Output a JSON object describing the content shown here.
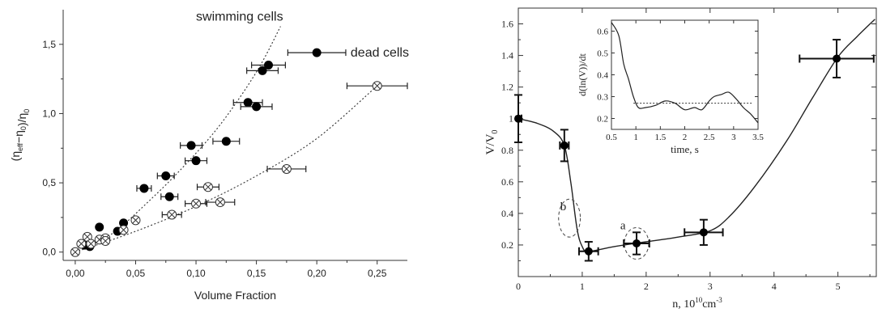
{
  "chart_data": [
    {
      "type": "scatter",
      "xlabel": "Volume Fraction",
      "ylabel": "(η_eff−η_0)/η_0",
      "ylabel_parts": {
        "main": "(η",
        "sub1": "eff",
        "mid": "−η",
        "sub2": "0",
        "close": ")/η",
        "sub3": "0"
      },
      "xlim": [
        -0.01,
        0.275
      ],
      "ylim": [
        -0.06,
        1.75
      ],
      "xticks": [
        0.0,
        0.05,
        0.1,
        0.15,
        0.2,
        0.25
      ],
      "xtick_labels": [
        "0,00",
        "0,05",
        "0,10",
        "0,15",
        "0,20",
        "0,25"
      ],
      "yticks": [
        0.0,
        0.5,
        1.0,
        1.5
      ],
      "ytick_labels": [
        "0,0",
        "0,5",
        "1,0",
        "1,5"
      ],
      "annotations": [
        {
          "text": "swimming cells",
          "x": 0.1,
          "y": 1.67
        },
        {
          "text": "dead cells",
          "x": 0.228,
          "y": 1.41
        }
      ],
      "series": [
        {
          "marker": "filled-circle",
          "points": [
            {
              "x": 0.008,
              "y": 0.05
            },
            {
              "x": 0.012,
              "y": 0.04
            },
            {
              "x": 0.02,
              "y": 0.18
            },
            {
              "x": 0.035,
              "y": 0.15
            },
            {
              "x": 0.04,
              "y": 0.21
            },
            {
              "x": 0.057,
              "y": 0.46,
              "xerr": 0.006
            },
            {
              "x": 0.075,
              "y": 0.55,
              "xerr": 0.007
            },
            {
              "x": 0.078,
              "y": 0.4,
              "xerr": 0.007
            },
            {
              "x": 0.096,
              "y": 0.77,
              "xerr": 0.009
            },
            {
              "x": 0.1,
              "y": 0.66,
              "xerr": 0.009
            },
            {
              "x": 0.125,
              "y": 0.8,
              "xerr": 0.011
            },
            {
              "x": 0.143,
              "y": 1.08,
              "xerr": 0.012
            },
            {
              "x": 0.15,
              "y": 1.05,
              "xerr": 0.013
            },
            {
              "x": 0.155,
              "y": 1.31,
              "xerr": 0.013
            },
            {
              "x": 0.16,
              "y": 1.35,
              "xerr": 0.014
            },
            {
              "x": 0.2,
              "y": 1.44,
              "xerr": 0.024
            }
          ],
          "fit_curve": [
            [
              0,
              0
            ],
            [
              0.03,
              0.13
            ],
            [
              0.06,
              0.36
            ],
            [
              0.09,
              0.62
            ],
            [
              0.12,
              0.92
            ],
            [
              0.15,
              1.3
            ],
            [
              0.17,
              1.63
            ]
          ]
        },
        {
          "marker": "crossed-circle",
          "points": [
            {
              "x": 0.0,
              "y": 0.0
            },
            {
              "x": 0.005,
              "y": 0.06
            },
            {
              "x": 0.01,
              "y": 0.11
            },
            {
              "x": 0.013,
              "y": 0.06
            },
            {
              "x": 0.02,
              "y": 0.09
            },
            {
              "x": 0.025,
              "y": 0.1
            },
            {
              "x": 0.025,
              "y": 0.08
            },
            {
              "x": 0.04,
              "y": 0.16
            },
            {
              "x": 0.05,
              "y": 0.23
            },
            {
              "x": 0.08,
              "y": 0.27,
              "xerr": 0.008
            },
            {
              "x": 0.1,
              "y": 0.35,
              "xerr": 0.009
            },
            {
              "x": 0.11,
              "y": 0.47,
              "xerr": 0.009
            },
            {
              "x": 0.12,
              "y": 0.36,
              "xerr": 0.012
            },
            {
              "x": 0.175,
              "y": 0.6,
              "xerr": 0.016
            },
            {
              "x": 0.25,
              "y": 1.2,
              "xerr": 0.025
            }
          ],
          "fit_curve": [
            [
              0,
              0
            ],
            [
              0.05,
              0.15
            ],
            [
              0.1,
              0.33
            ],
            [
              0.15,
              0.55
            ],
            [
              0.2,
              0.82
            ],
            [
              0.25,
              1.2
            ]
          ]
        }
      ]
    },
    {
      "type": "scatter",
      "xlabel": "n, 10¹⁰cm⁻³",
      "xlabel_parts": {
        "main": "n,  10",
        "sup1": "10",
        "mid": "cm",
        "sup2": "-3"
      },
      "ylabel": "V/V0",
      "ylabel_parts": {
        "main": "V/V",
        "sub": "0"
      },
      "xlim": [
        0,
        5.6
      ],
      "ylim": [
        0,
        1.7
      ],
      "xticks": [
        0,
        1,
        2,
        3,
        4,
        5
      ],
      "xtick_labels": [
        "0",
        "1",
        "2",
        "3",
        "4",
        "5"
      ],
      "yticks": [
        0.2,
        0.4,
        0.6,
        0.8,
        1.0,
        1.2,
        1.4,
        1.6
      ],
      "ytick_labels": [
        "0.2",
        "0.4",
        "0.6",
        "0.8",
        "1",
        "1.2",
        "1.4",
        "1.6"
      ],
      "annotations": [
        {
          "text": "b",
          "x": 0.75,
          "y": 0.42
        },
        {
          "text": "a",
          "x": 1.68,
          "y": 0.3
        }
      ],
      "highlighted": [
        {
          "label": "b",
          "x": 0.8,
          "y": 0.37,
          "rx": 0.17,
          "ry": 0.12
        },
        {
          "label": "a",
          "x": 1.85,
          "y": 0.21,
          "rx": 0.19,
          "ry": 0.1
        }
      ],
      "points": [
        {
          "x": 0.0,
          "y": 1.0,
          "xerr": 0.05,
          "yerr": 0.15
        },
        {
          "x": 0.72,
          "y": 0.83,
          "xerr": 0.07,
          "yerr": 0.1
        },
        {
          "x": 1.1,
          "y": 0.16,
          "xerr": 0.15,
          "yerr": 0.06
        },
        {
          "x": 1.85,
          "y": 0.21,
          "xerr": 0.2,
          "yerr": 0.07
        },
        {
          "x": 2.9,
          "y": 0.28,
          "xerr": 0.3,
          "yerr": 0.08
        },
        {
          "x": 4.98,
          "y": 1.38,
          "xerr": 0.58,
          "yerr": 0.12
        }
      ],
      "curve": [
        [
          0,
          1.0
        ],
        [
          0.3,
          0.97
        ],
        [
          0.55,
          0.92
        ],
        [
          0.72,
          0.83
        ],
        [
          0.82,
          0.6
        ],
        [
          0.92,
          0.3
        ],
        [
          1.0,
          0.19
        ],
        [
          1.1,
          0.16
        ],
        [
          1.5,
          0.19
        ],
        [
          2.0,
          0.22
        ],
        [
          2.5,
          0.25
        ],
        [
          3.0,
          0.29
        ],
        [
          3.3,
          0.38
        ],
        [
          3.7,
          0.57
        ],
        [
          4.2,
          0.86
        ],
        [
          4.6,
          1.13
        ],
        [
          5.0,
          1.39
        ],
        [
          5.3,
          1.52
        ],
        [
          5.58,
          1.63
        ]
      ],
      "inset": {
        "type": "line",
        "xlabel": "time, s",
        "ylabel": "d(ln(V))/dt",
        "xlim": [
          0.5,
          3.5
        ],
        "ylim": [
          0.15,
          0.65
        ],
        "xticks": [
          0.5,
          1,
          1.5,
          2,
          2.5,
          3,
          3.5
        ],
        "xtick_labels": [
          "0.5",
          "1",
          "1.5",
          "2",
          "2.5",
          "3",
          "3.5"
        ],
        "yticks": [
          0.2,
          0.3,
          0.4,
          0.5,
          0.6
        ],
        "ytick_labels": [
          "0.2",
          "0.3",
          "0.4",
          "0.5",
          "0.6"
        ],
        "reference_line": 0.27,
        "line": [
          [
            0.5,
            0.64
          ],
          [
            0.65,
            0.58
          ],
          [
            0.75,
            0.45
          ],
          [
            0.85,
            0.38
          ],
          [
            0.95,
            0.3
          ],
          [
            1.05,
            0.25
          ],
          [
            1.2,
            0.25
          ],
          [
            1.4,
            0.26
          ],
          [
            1.6,
            0.28
          ],
          [
            1.8,
            0.27
          ],
          [
            2.0,
            0.24
          ],
          [
            2.2,
            0.25
          ],
          [
            2.35,
            0.24
          ],
          [
            2.5,
            0.28
          ],
          [
            2.6,
            0.3
          ],
          [
            2.75,
            0.31
          ],
          [
            2.9,
            0.32
          ],
          [
            3.05,
            0.29
          ],
          [
            3.2,
            0.25
          ],
          [
            3.35,
            0.22
          ],
          [
            3.5,
            0.18
          ]
        ]
      }
    }
  ]
}
